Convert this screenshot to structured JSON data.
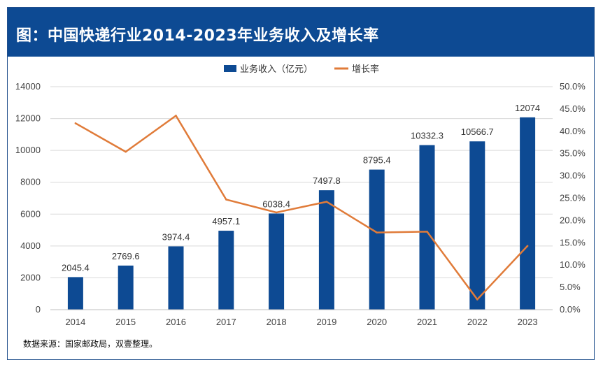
{
  "header": {
    "title": "图：中国快递行业2014-2023年业务收入及增长率"
  },
  "footer": {
    "source": "数据来源：国家邮政局，双壹整理。"
  },
  "colors": {
    "header_bg": "#0d4a93",
    "bar": "#0d4a93",
    "line": "#e07b39",
    "grid": "#d9d9d9"
  },
  "chart_data": {
    "type": "bar",
    "title": "图：中国快递行业2014-2023年业务收入及增长率",
    "categories": [
      "2014",
      "2015",
      "2016",
      "2017",
      "2018",
      "2019",
      "2020",
      "2021",
      "2022",
      "2023"
    ],
    "series": [
      {
        "name": "业务收入（亿元）",
        "type": "bar",
        "axis": "left",
        "values": [
          2045.4,
          2769.6,
          3974.4,
          4957.1,
          6038.4,
          7497.8,
          8795.4,
          10332.3,
          10566.7,
          12074
        ],
        "labels": [
          "2045.4",
          "2769.6",
          "3974.4",
          "4957.1",
          "6038.4",
          "7497.8",
          "8795.4",
          "10332.3",
          "10566.7",
          "12074"
        ]
      },
      {
        "name": "增长率",
        "type": "line",
        "axis": "right",
        "values": [
          41.8,
          35.4,
          43.5,
          24.7,
          21.8,
          24.2,
          17.3,
          17.5,
          2.3,
          14.3
        ]
      }
    ],
    "ylim": [
      0,
      14000
    ],
    "yticks": [
      "0",
      "2000",
      "4000",
      "6000",
      "8000",
      "10000",
      "12000",
      "14000"
    ],
    "y2lim": [
      0,
      50
    ],
    "y2ticks": [
      "0.0%",
      "5.0%",
      "10.0%",
      "15.0%",
      "20.0%",
      "25.0%",
      "30.0%",
      "35.0%",
      "40.0%",
      "45.0%",
      "50.0%"
    ],
    "legend": "top-center",
    "grid": true
  }
}
